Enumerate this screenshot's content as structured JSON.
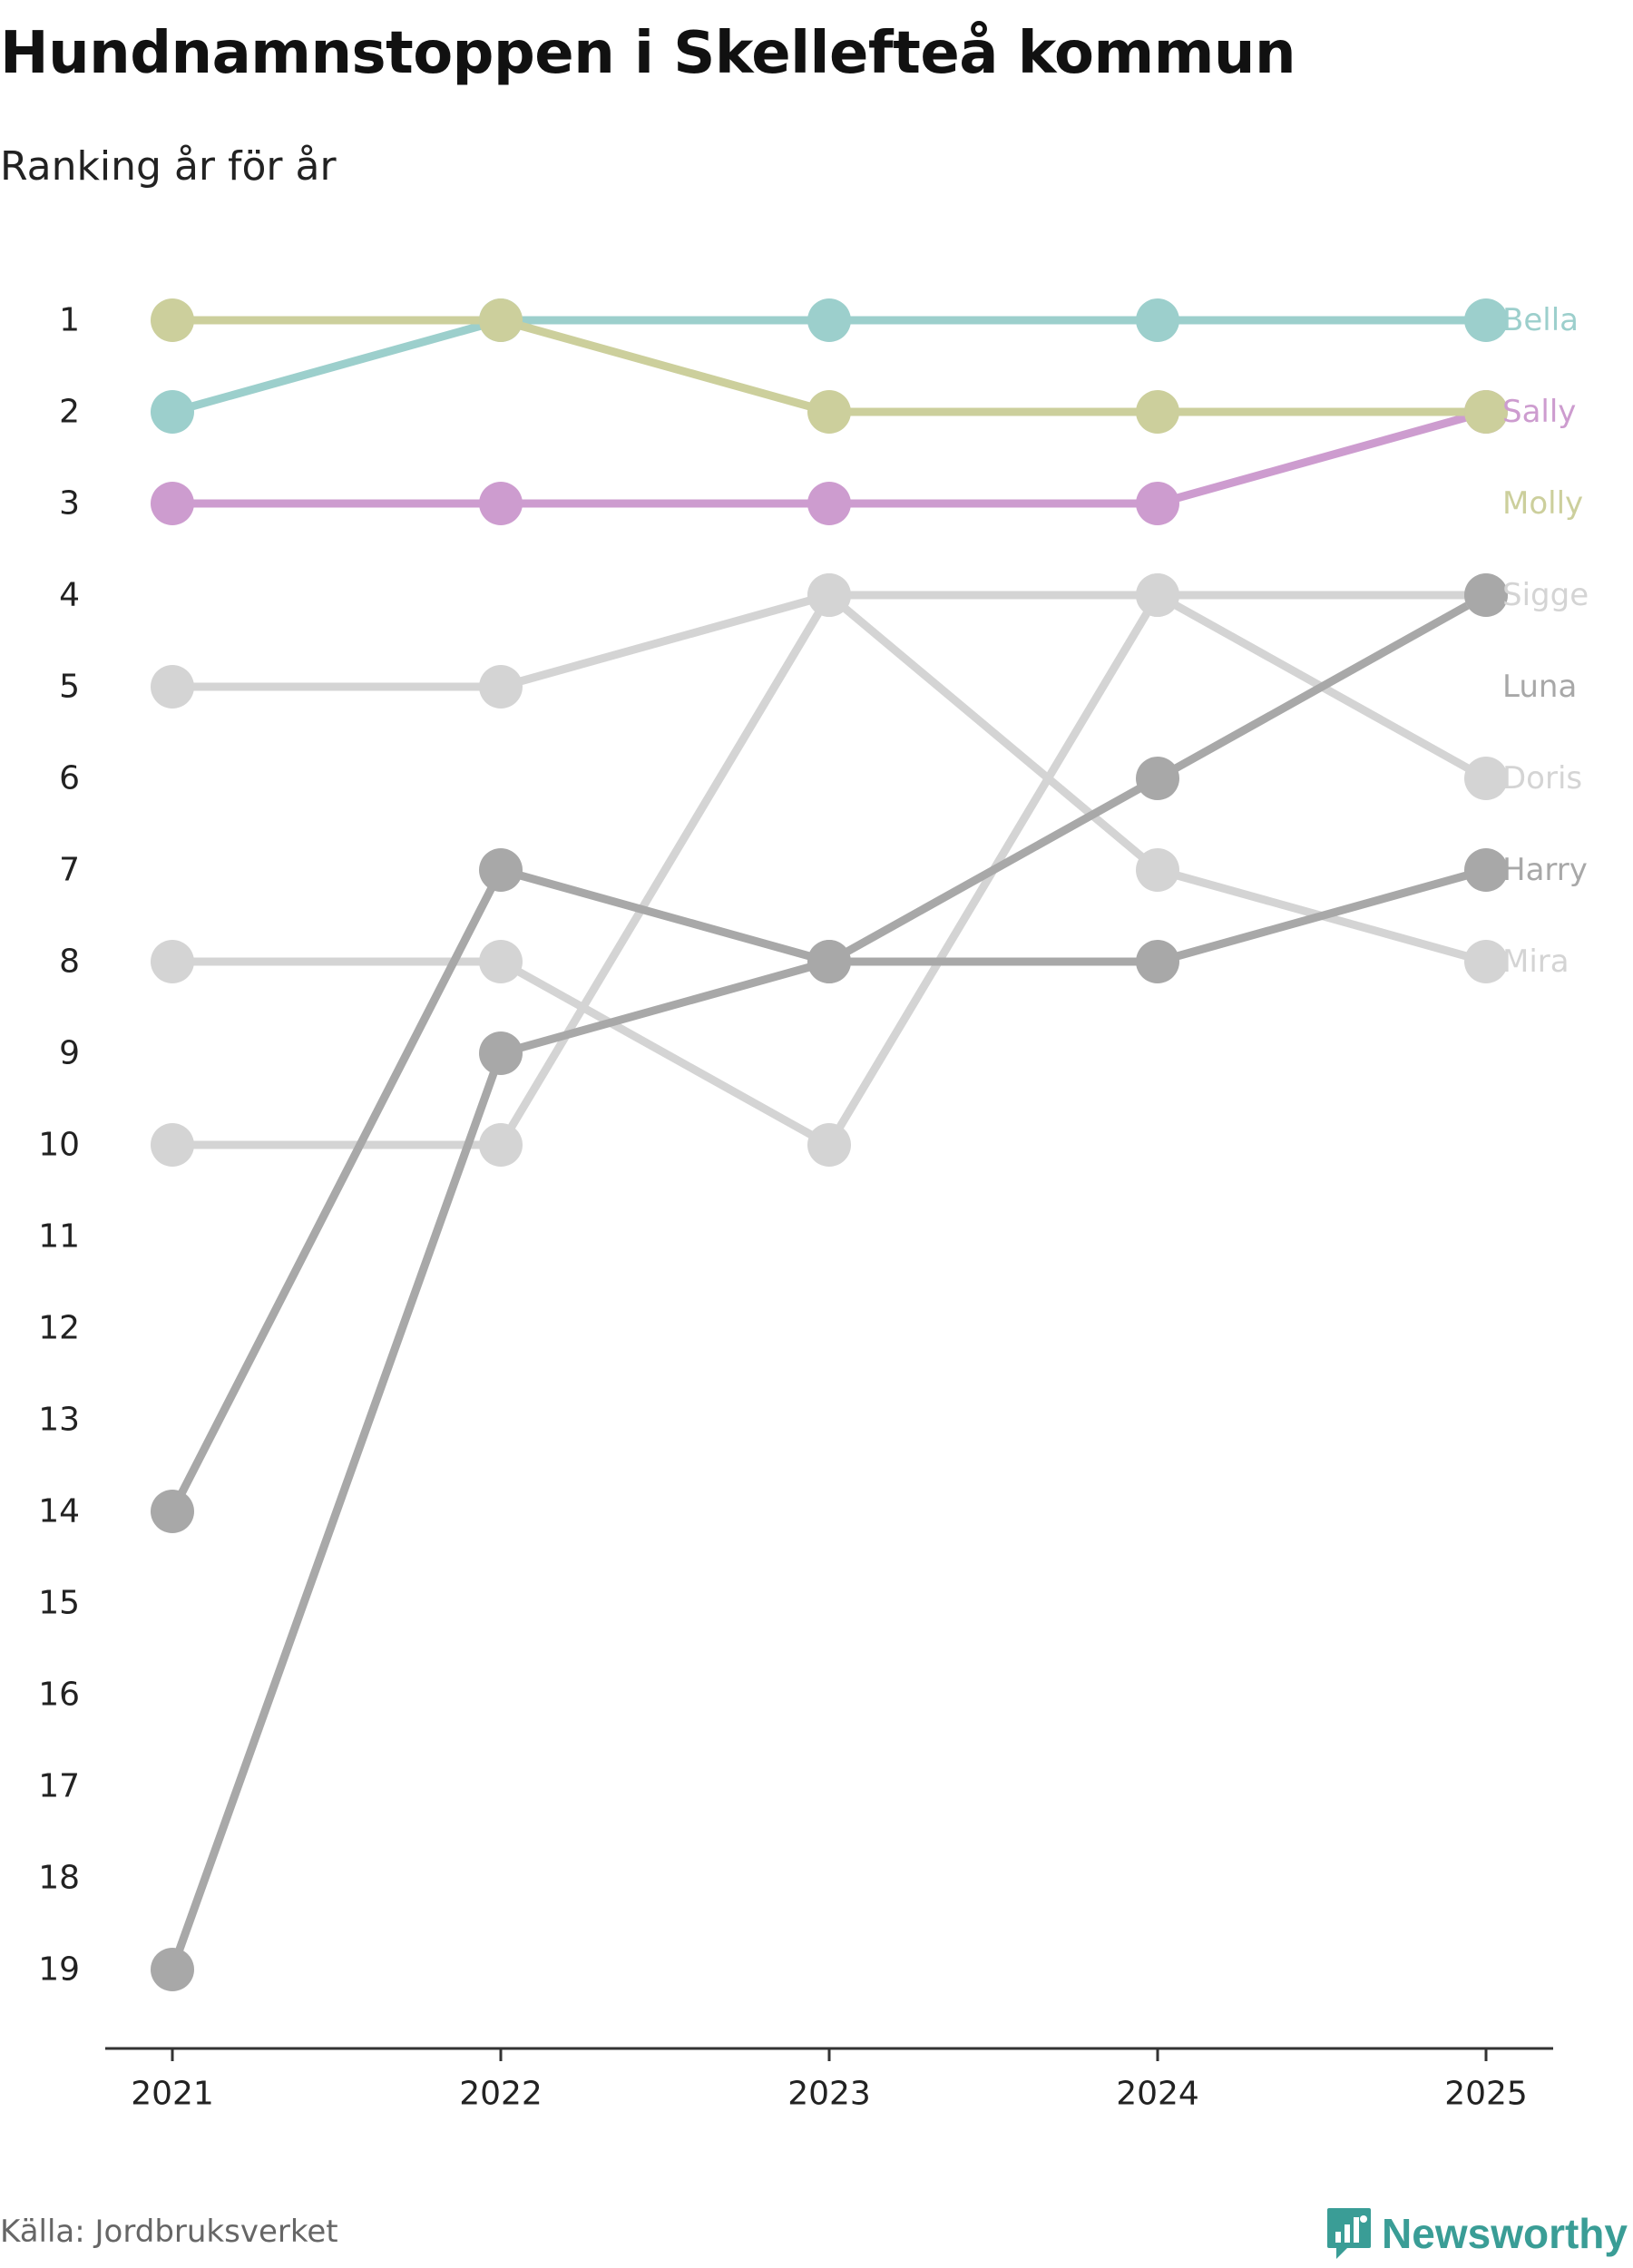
{
  "title": "Hundnamnstoppen i Skellefteå kommun",
  "subtitle": "Ranking år för år",
  "source": "Källa: Jordbruksverket",
  "brand": "Newsworthy",
  "brand_icon": "newsworthy-bar-chart-icon",
  "colors": {
    "brand": "#3a9d96",
    "axis": "#333333",
    "text": "#222222"
  },
  "chart_data": {
    "type": "line",
    "subtype": "bump",
    "title": "Hundnamnstoppen i Skellefteå kommun",
    "subtitle": "Ranking år för år",
    "x": [
      "2021",
      "2022",
      "2023",
      "2024",
      "2025"
    ],
    "y_ticks": [
      1,
      2,
      3,
      4,
      5,
      6,
      7,
      8,
      9,
      10,
      11,
      12,
      13,
      14,
      15,
      16,
      17,
      18,
      19
    ],
    "ylim": [
      1,
      19
    ],
    "y_inverted": true,
    "grid": false,
    "series": [
      {
        "name": "Bella",
        "color": "#9ccfcc",
        "ranks": [
          2,
          1,
          1,
          1,
          1
        ],
        "label_rank": 1
      },
      {
        "name": "Sally",
        "color": "#cd9ccf",
        "ranks": [
          3,
          3,
          3,
          3,
          2
        ],
        "label_rank": 2
      },
      {
        "name": "Molly",
        "color": "#cccf9c",
        "ranks": [
          1,
          1,
          2,
          2,
          2
        ],
        "label_rank": 3
      },
      {
        "name": "Sigge",
        "color": "#d4d4d4",
        "ranks": [
          5,
          5,
          4,
          4,
          4
        ],
        "label_rank": 4
      },
      {
        "name": "Luna",
        "color": "#a8a8a8",
        "ranks": [
          19,
          9,
          8,
          6,
          4
        ],
        "label_rank": 5
      },
      {
        "name": "Doris",
        "color": "#d4d4d4",
        "ranks": [
          8,
          8,
          10,
          4,
          6
        ],
        "label_rank": 6
      },
      {
        "name": "Harry",
        "color": "#a8a8a8",
        "ranks": [
          14,
          7,
          8,
          8,
          7
        ],
        "label_rank": 7
      },
      {
        "name": "Mira",
        "color": "#d4d4d4",
        "ranks": [
          10,
          10,
          4,
          7,
          8
        ],
        "label_rank": 8
      }
    ]
  }
}
